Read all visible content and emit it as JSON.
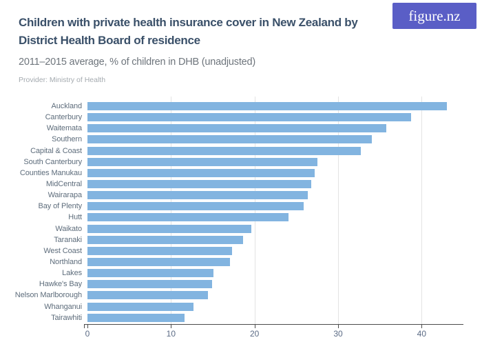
{
  "header": {
    "title_lines": [
      "Children with private health insurance cover in New Zealand by",
      "District Health Board of residence"
    ],
    "subtitle": "2011–2015 average, % of children in DHB (unadjusted)",
    "provider": "Provider: Ministry of Health",
    "logo_text": "figure.nz"
  },
  "colors": {
    "bar": "#82b4e0",
    "gridline": "#e3e3e3",
    "axis": "#4a4a4a",
    "title": "#3a5069",
    "subtitle": "#6e757c",
    "provider": "#a4aaaf",
    "category_label": "#5d6c7b",
    "tick_label": "#5b6b85",
    "logo_background": "#5a5ec6",
    "logo_text": "#ffffff"
  },
  "chart_data": {
    "type": "bar",
    "orientation": "horizontal",
    "title": "Children with private health insurance cover in New Zealand by District Health Board of residence",
    "subtitle": "2011–2015 average, % of children in DHB (unadjusted)",
    "xlabel": "",
    "ylabel": "",
    "grid": true,
    "xlim": [
      0,
      45
    ],
    "x_ticks": [
      0,
      10,
      20,
      30,
      40
    ],
    "categories": [
      "Auckland",
      "Canterbury",
      "Waitemata",
      "Southern",
      "Capital & Coast",
      "South Canterbury",
      "Counties Manukau",
      "MidCentral",
      "Wairarapa",
      "Bay of Plenty",
      "Hutt",
      "Waikato",
      "Taranaki",
      "West Coast",
      "Northland",
      "Lakes",
      "Hawke's Bay",
      "Nelson Marlborough",
      "Whanganui",
      "Tairawhiti"
    ],
    "values": [
      43.0,
      38.7,
      35.8,
      34.0,
      32.7,
      27.5,
      27.2,
      26.8,
      26.4,
      25.9,
      24.1,
      19.6,
      18.6,
      17.3,
      17.1,
      15.1,
      14.9,
      14.4,
      12.7,
      11.6
    ]
  }
}
